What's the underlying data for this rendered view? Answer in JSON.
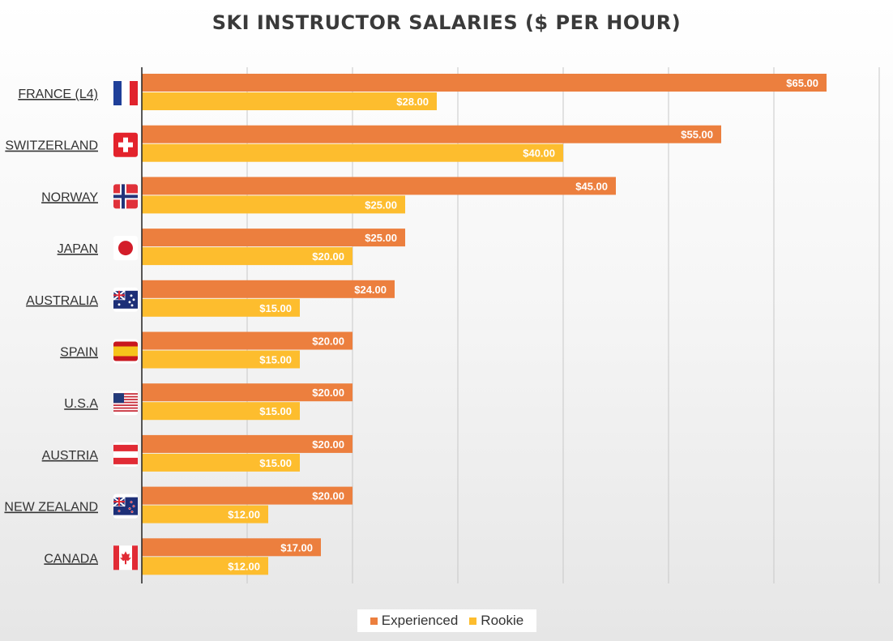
{
  "chart_data": {
    "type": "bar",
    "orientation": "horizontal",
    "title": "SKI INSTRUCTOR SALARIES ($ PER HOUR)",
    "categories": [
      "FRANCE (L4)",
      "SWITZERLAND",
      "NORWAY",
      "JAPAN",
      "AUSTRALIA",
      "SPAIN",
      "U.S.A",
      "AUSTRIA",
      "NEW ZEALAND",
      "CANADA"
    ],
    "series": [
      {
        "name": "Experienced",
        "color": "#ec7f3e",
        "values": [
          65,
          55,
          45,
          25,
          24,
          20,
          20,
          20,
          20,
          17
        ],
        "labels": [
          "$65.00",
          "$55.00",
          "$45.00",
          "$25.00",
          "$24.00",
          "$20.00",
          "$20.00",
          "$20.00",
          "$20.00",
          "$17.00"
        ]
      },
      {
        "name": "Rookie",
        "color": "#fdbd2e",
        "values": [
          28,
          40,
          25,
          20,
          15,
          15,
          15,
          15,
          12,
          12
        ],
        "labels": [
          "$28.00",
          "$40.00",
          "$25.00",
          "$20.00",
          "$15.00",
          "$15.00",
          "$15.00",
          "$15.00",
          "$12.00",
          "$12.00"
        ]
      }
    ],
    "flags": [
      "france-flag-icon",
      "switzerland-flag-icon",
      "norway-flag-icon",
      "japan-flag-icon",
      "australia-flag-icon",
      "spain-flag-icon",
      "usa-flag-icon",
      "austria-flag-icon",
      "new-zealand-flag-icon",
      "canada-flag-icon"
    ],
    "xlim": [
      0,
      70
    ],
    "grid": true,
    "legend_position": "bottom-center"
  }
}
